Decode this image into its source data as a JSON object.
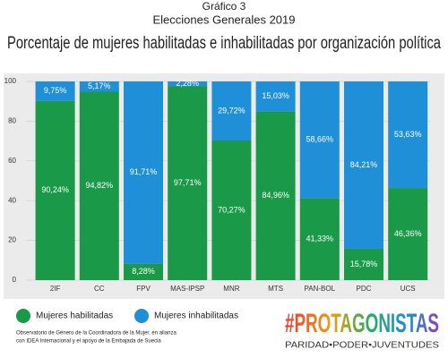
{
  "chart_data": {
    "type": "stacked-bar",
    "supertitle": "Gráfico 3",
    "subtitle": "Elecciones Generales 2019",
    "title": "Porcentaje de mujeres habilitadas e inhabilitadas por organización política",
    "categories": [
      "2IF",
      "CC",
      "FPV",
      "MAS-IPSP",
      "MNR",
      "MTS",
      "PAN-BOL",
      "PDC",
      "UCS"
    ],
    "series": [
      {
        "name": "Mujeres habilitadas",
        "color": "#1a9a48",
        "values": [
          90.24,
          94.82,
          8.28,
          97.71,
          70.27,
          84.96,
          41.33,
          15.78,
          46.36
        ],
        "value_labels": [
          "90,24%",
          "94,82%",
          "8,28%",
          "97,71%",
          "70,27%",
          "84,96%",
          "41,33%",
          "15,78%",
          "46,36%"
        ]
      },
      {
        "name": "Mujeres inhabilitadas",
        "color": "#1f8fd8",
        "values": [
          9.75,
          5.17,
          91.71,
          2.28,
          29.72,
          15.03,
          58.66,
          84.21,
          53.63
        ],
        "value_labels": [
          "9,75%",
          "5,17%",
          "91,71%",
          "2,28%",
          "29,72%",
          "15,03%",
          "58,66%",
          "84,21%",
          "53,63%"
        ]
      }
    ],
    "ylim": [
      0,
      100
    ],
    "yticks": [
      0,
      20,
      40,
      60,
      80,
      100
    ],
    "grid": true,
    "source": [
      "Observatorio de Género de la Coordinadora de la Mujer, en alianza",
      "con IDEA Internacional y el apoyo de la Embajada de Suecia"
    ],
    "logo_title": "#PROTAGONISTAS",
    "logo_subtitle": "PARIDAD•PODER•JUVENTUDES"
  }
}
